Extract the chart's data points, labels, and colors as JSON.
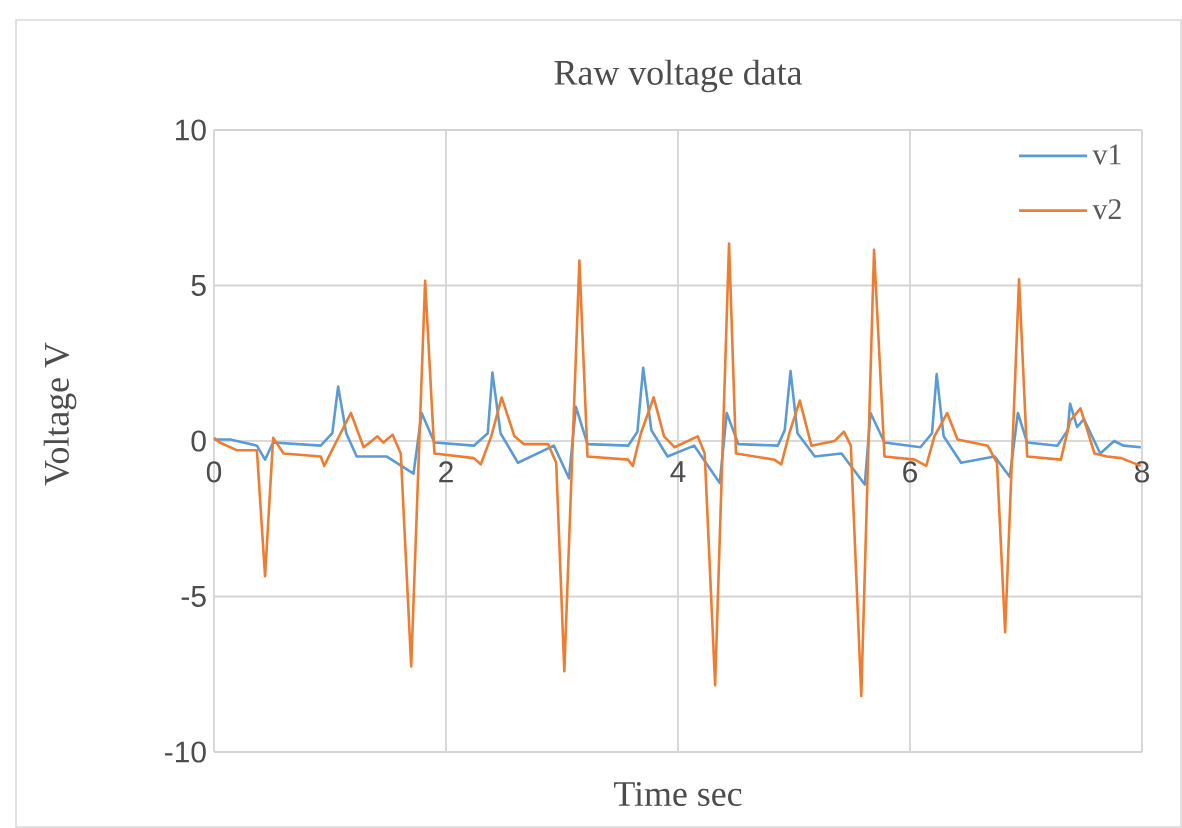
{
  "chart_data": {
    "type": "line",
    "title": "Raw voltage data",
    "xlabel": "Time sec",
    "ylabel": "Voltage V",
    "xlim": [
      0,
      8
    ],
    "ylim": [
      -10,
      10
    ],
    "xticks": [
      0,
      2,
      4,
      6,
      8
    ],
    "yticks": [
      -10,
      -5,
      0,
      5,
      10
    ],
    "grid": true,
    "legend": "top right",
    "marker": "none",
    "line_style": "solid",
    "series": [
      {
        "name": "v1",
        "color": "#5b9bd5",
        "x": [
          0,
          0.14,
          0.37,
          0.44,
          0.51,
          0.92,
          1.02,
          1.07,
          1.14,
          1.23,
          1.49,
          1.72,
          1.79,
          1.9,
          2.24,
          2.36,
          2.4,
          2.47,
          2.62,
          2.93,
          3.06,
          3.12,
          3.22,
          3.57,
          3.65,
          3.7,
          3.77,
          3.91,
          4.14,
          4.36,
          4.42,
          4.52,
          4.86,
          4.92,
          4.97,
          5.03,
          5.18,
          5.41,
          5.61,
          5.66,
          5.78,
          6.09,
          6.19,
          6.23,
          6.29,
          6.44,
          6.73,
          6.86,
          6.93,
          7.01,
          7.27,
          7.36,
          7.38,
          7.44,
          7.5,
          7.64,
          7.76,
          7.84,
          7.99
        ],
        "values": [
          0.05,
          0.05,
          -0.15,
          -0.6,
          -0.05,
          -0.15,
          0.25,
          1.75,
          0.25,
          -0.5,
          -0.5,
          -1.05,
          0.9,
          -0.05,
          -0.15,
          0.25,
          2.2,
          0.25,
          -0.7,
          -0.15,
          -1.2,
          1.1,
          -0.1,
          -0.15,
          0.3,
          2.35,
          0.35,
          -0.5,
          -0.15,
          -1.35,
          0.9,
          -0.1,
          -0.15,
          0.35,
          2.25,
          0.25,
          -0.5,
          -0.4,
          -1.4,
          0.9,
          -0.05,
          -0.2,
          0.25,
          2.15,
          0.15,
          -0.7,
          -0.5,
          -1.15,
          0.9,
          -0.05,
          -0.15,
          0.35,
          1.2,
          0.45,
          0.7,
          -0.4,
          0,
          -0.15,
          -0.2
        ]
      },
      {
        "name": "v2",
        "color": "#ed7d31",
        "x": [
          0,
          0.05,
          0.2,
          0.37,
          0.44,
          0.51,
          0.6,
          0.92,
          0.95,
          1.03,
          1.18,
          1.29,
          1.41,
          1.46,
          1.54,
          1.61,
          1.7,
          1.82,
          1.9,
          2.24,
          2.3,
          2.39,
          2.48,
          2.59,
          2.67,
          2.88,
          2.95,
          3.02,
          3.15,
          3.22,
          3.57,
          3.61,
          3.68,
          3.79,
          3.88,
          3.97,
          4.17,
          4.23,
          4.32,
          4.44,
          4.5,
          4.83,
          4.89,
          4.96,
          5.05,
          5.15,
          5.35,
          5.43,
          5.49,
          5.58,
          5.69,
          5.78,
          6.04,
          6.14,
          6.21,
          6.32,
          6.41,
          6.67,
          6.75,
          6.82,
          6.94,
          7.01,
          7.3,
          7.38,
          7.47,
          7.59,
          7.7,
          7.82,
          7.99
        ],
        "values": [
          0.1,
          -0.05,
          -0.3,
          -0.3,
          -4.35,
          0.1,
          -0.4,
          -0.5,
          -0.8,
          -0.2,
          0.9,
          -0.2,
          0.15,
          -0.05,
          0.2,
          -0.4,
          -7.25,
          5.15,
          -0.4,
          -0.55,
          -0.75,
          0.15,
          1.4,
          0.15,
          -0.1,
          -0.1,
          -0.7,
          -7.4,
          5.8,
          -0.5,
          -0.6,
          -0.8,
          0.25,
          1.4,
          0.15,
          -0.2,
          0.15,
          -0.4,
          -7.85,
          6.35,
          -0.4,
          -0.6,
          -0.75,
          0.25,
          1.3,
          -0.15,
          0,
          0.3,
          -0.15,
          -8.2,
          6.15,
          -0.5,
          -0.6,
          -0.8,
          0.15,
          0.9,
          0.05,
          -0.15,
          -0.7,
          -6.15,
          5.2,
          -0.5,
          -0.6,
          0.65,
          1.05,
          -0.4,
          -0.5,
          -0.55,
          -0.8
        ]
      }
    ]
  }
}
